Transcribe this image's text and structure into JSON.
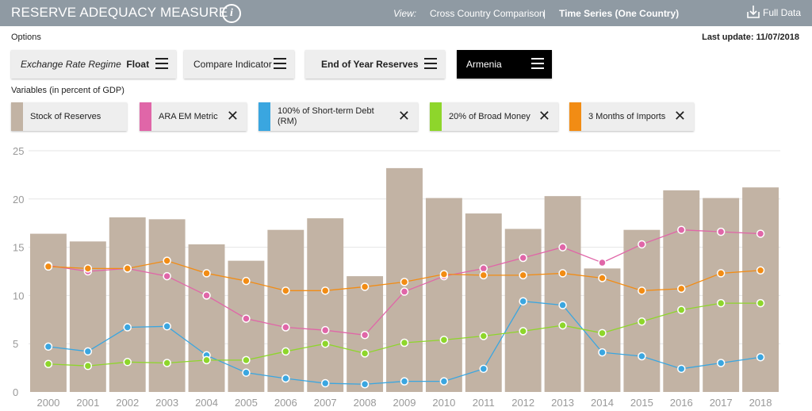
{
  "header": {
    "title": "RESERVE ADEQUACY MEASURE",
    "view_label": "View:",
    "view_option_1": "Cross Country Comparison",
    "view_separator": "|",
    "view_option_2": "Time Series (One Country)",
    "full_data_label": "Full Data"
  },
  "options": {
    "label": "Options",
    "last_update": "Last update: 11/07/2018",
    "regime_label": "Exchange Rate Regime",
    "regime_value": "Float",
    "compare_indicator": "Compare Indicator",
    "reserve_type": "End of Year Reserves",
    "country": "Armenia"
  },
  "variables": {
    "label": "Variables (in percent of GDP)",
    "chips": [
      {
        "label": "Stock of Reserves",
        "color": "#c2b3a4",
        "removable": false
      },
      {
        "label": "ARA EM Metric",
        "color": "#e066a8",
        "removable": true
      },
      {
        "label_line1": "100% of Short-term Debt",
        "label_line2": "(RM)",
        "color": "#3aa6e0",
        "removable": true
      },
      {
        "label": "20% of Broad Money",
        "color": "#8ed62b",
        "removable": true
      },
      {
        "label": "3 Months of Imports",
        "color": "#f28c14",
        "removable": true
      }
    ]
  },
  "chart_data": {
    "type": "bar",
    "categories": [
      "2000",
      "2001",
      "2002",
      "2003",
      "2004",
      "2005",
      "2006",
      "2007",
      "2008",
      "2009",
      "2010",
      "2011",
      "2012",
      "2013",
      "2014",
      "2015",
      "2016",
      "2017",
      "2018"
    ],
    "ylim": [
      0,
      25
    ],
    "yticks": [
      0,
      5,
      10,
      15,
      20,
      25
    ],
    "grid": true,
    "series": [
      {
        "name": "Stock of Reserves",
        "type": "bar",
        "color": "#c2b3a4",
        "values": [
          16.4,
          15.6,
          18.1,
          17.9,
          15.3,
          13.6,
          16.8,
          18.0,
          12.0,
          23.2,
          20.1,
          18.5,
          16.9,
          20.3,
          12.8,
          16.8,
          20.9,
          20.1,
          21.2
        ]
      },
      {
        "name": "ARA EM Metric",
        "type": "line",
        "color": "#e066a8",
        "values": [
          13.1,
          12.5,
          12.8,
          12.0,
          10.0,
          7.6,
          6.7,
          6.4,
          5.9,
          10.4,
          12.0,
          12.8,
          13.9,
          15.0,
          13.4,
          15.3,
          16.8,
          16.6,
          16.4
        ]
      },
      {
        "name": "100% of Short-term Debt (RM)",
        "type": "line",
        "color": "#3aa6e0",
        "values": [
          4.7,
          4.2,
          6.7,
          6.8,
          3.8,
          2.0,
          1.4,
          0.9,
          0.8,
          1.1,
          1.1,
          2.4,
          9.4,
          9.0,
          4.1,
          3.7,
          2.4,
          3.0,
          3.6
        ]
      },
      {
        "name": "20% of Broad Money",
        "type": "line",
        "color": "#8ed62b",
        "values": [
          2.9,
          2.7,
          3.1,
          3.0,
          3.3,
          3.3,
          4.2,
          5.0,
          4.0,
          5.1,
          5.4,
          5.8,
          6.3,
          6.9,
          6.1,
          7.3,
          8.5,
          9.2,
          9.2
        ]
      },
      {
        "name": "3 Months of Imports",
        "type": "line",
        "color": "#f28c14",
        "values": [
          13.0,
          12.8,
          12.8,
          13.6,
          12.3,
          11.5,
          10.5,
          10.5,
          10.9,
          11.4,
          12.2,
          12.1,
          12.1,
          12.3,
          11.8,
          10.5,
          10.7,
          12.3,
          12.6
        ]
      }
    ]
  }
}
